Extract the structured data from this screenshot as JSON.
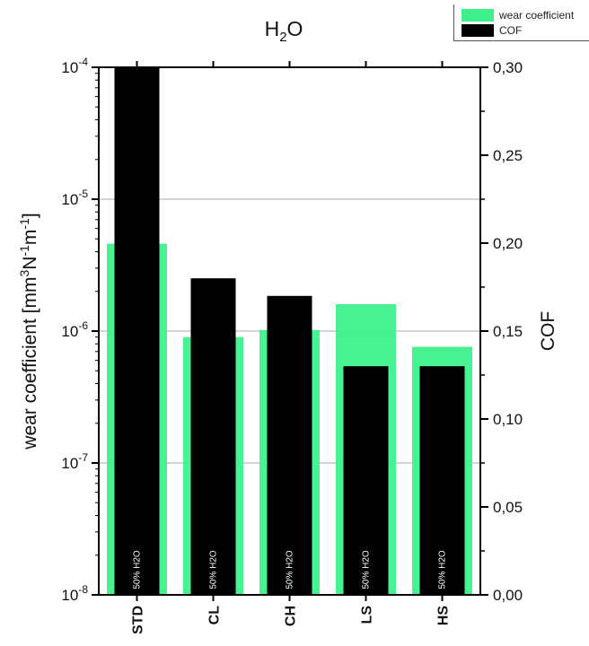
{
  "chart_data": {
    "type": "bar",
    "title": "H2O",
    "categories": [
      "STD",
      "CL",
      "CH",
      "LS",
      "HS"
    ],
    "bar_annotation": "50% H2O",
    "xlabel": "",
    "y_left": {
      "label": "wear coefficient [mm3N-1m-1]",
      "scale": "log",
      "range": [
        1e-08,
        0.0001
      ],
      "ticks": [
        "10-8",
        "10-7",
        "10-6",
        "10-5",
        "10-4"
      ]
    },
    "y_right": {
      "label": "COF",
      "scale": "linear",
      "range": [
        0,
        0.3
      ],
      "ticks": [
        "0,00",
        "0,05",
        "0,10",
        "0,15",
        "0,20",
        "0,25",
        "0,30"
      ]
    },
    "series": [
      {
        "name": "wear coefficient",
        "axis": "left",
        "color": "#3ef08c",
        "values": [
          4.6e-06,
          9e-07,
          1.02e-06,
          1.6e-06,
          7.6e-07
        ]
      },
      {
        "name": "COF",
        "axis": "right",
        "color": "#000000",
        "values": [
          0.3,
          0.18,
          0.17,
          0.13,
          0.13
        ]
      }
    ],
    "grid": "horizontal major lines on left axis",
    "legend": "top-right"
  }
}
